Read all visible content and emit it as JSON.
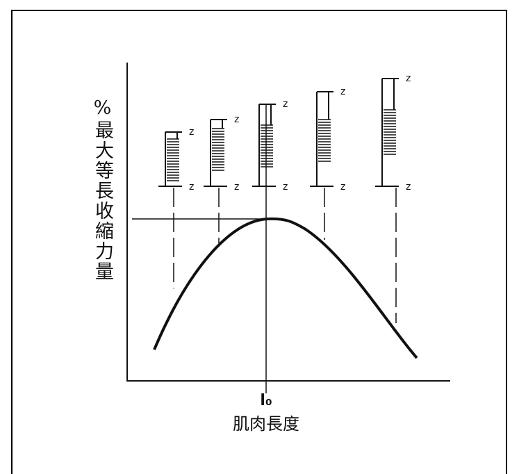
{
  "y_label": "%最大等長收縮力量",
  "x_label": "肌肉長度",
  "optimal_length": "l₀",
  "z_labels": [
    "z",
    "z",
    "z",
    "z",
    "z",
    "z",
    "z",
    "z",
    "z",
    "z"
  ]
}
